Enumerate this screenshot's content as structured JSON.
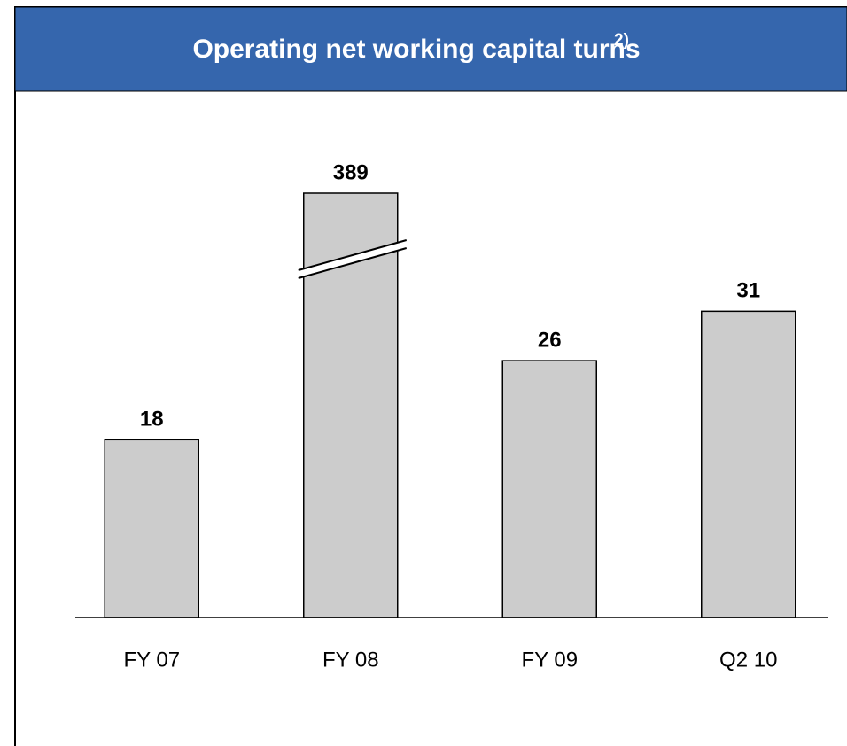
{
  "chart_data": {
    "type": "bar",
    "title": "Operating net working capital turns",
    "title_note": "2)",
    "categories": [
      "FY 07",
      "FY 08",
      "FY 09",
      "Q2 10"
    ],
    "values": [
      18,
      389,
      26,
      31
    ],
    "color": "#cccccc",
    "broken_axis": true
  }
}
